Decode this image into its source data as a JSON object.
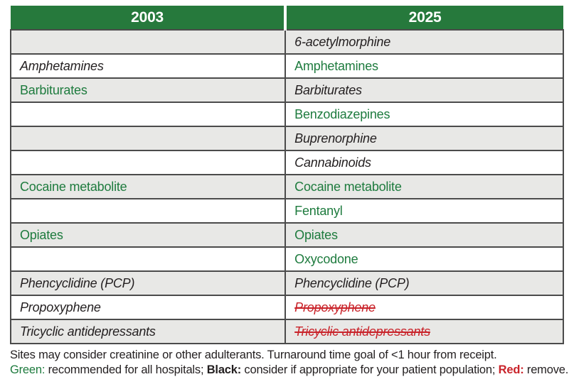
{
  "table": {
    "columns": [
      {
        "header": "2003"
      },
      {
        "header": "2025"
      }
    ],
    "rows": [
      {
        "c2003": {
          "text": "",
          "style": "empty"
        },
        "c2025": {
          "text": "6-acetylmorphine",
          "style": "black"
        }
      },
      {
        "c2003": {
          "text": "Amphetamines",
          "style": "black"
        },
        "c2025": {
          "text": "Amphetamines",
          "style": "green"
        }
      },
      {
        "c2003": {
          "text": "Barbiturates",
          "style": "green"
        },
        "c2025": {
          "text": "Barbiturates",
          "style": "black"
        }
      },
      {
        "c2003": {
          "text": "",
          "style": "empty"
        },
        "c2025": {
          "text": "Benzodiazepines",
          "style": "green"
        }
      },
      {
        "c2003": {
          "text": "",
          "style": "empty"
        },
        "c2025": {
          "text": "Buprenorphine",
          "style": "black"
        }
      },
      {
        "c2003": {
          "text": "",
          "style": "empty"
        },
        "c2025": {
          "text": "Cannabinoids",
          "style": "black"
        }
      },
      {
        "c2003": {
          "text": "Cocaine metabolite",
          "style": "green"
        },
        "c2025": {
          "text": "Cocaine metabolite",
          "style": "green"
        }
      },
      {
        "c2003": {
          "text": "",
          "style": "empty"
        },
        "c2025": {
          "text": "Fentanyl",
          "style": "green"
        }
      },
      {
        "c2003": {
          "text": "Opiates",
          "style": "green"
        },
        "c2025": {
          "text": "Opiates",
          "style": "green"
        }
      },
      {
        "c2003": {
          "text": "",
          "style": "empty"
        },
        "c2025": {
          "text": "Oxycodone",
          "style": "green"
        }
      },
      {
        "c2003": {
          "text": "Phencyclidine (PCP)",
          "style": "black"
        },
        "c2025": {
          "text": "Phencyclidine (PCP)",
          "style": "black"
        }
      },
      {
        "c2003": {
          "text": "Propoxyphene",
          "style": "black"
        },
        "c2025": {
          "text": "Propoxyphene",
          "style": "red"
        }
      },
      {
        "c2003": {
          "text": "Tricyclic antidepressants",
          "style": "black"
        },
        "c2025": {
          "text": "Tricyclic antidepressants",
          "style": "red"
        }
      }
    ]
  },
  "footnote": {
    "line1": "Sites may consider creatinine or other adulterants. Turnaround time goal of <1 hour from receipt.",
    "legend": {
      "green_label": "Green:",
      "green_text": " recommended for all hospitals; ",
      "black_label": "Black:",
      "black_text": " consider if appropriate for your patient population; ",
      "red_label": "Red:",
      "red_text": " remove."
    }
  },
  "colors": {
    "header_green": "#26793c",
    "text_green": "#1e7b3e",
    "row_gray": "#e8e8e6",
    "border_gray": "#4b4b4b",
    "remove_red": "#c9232a"
  }
}
